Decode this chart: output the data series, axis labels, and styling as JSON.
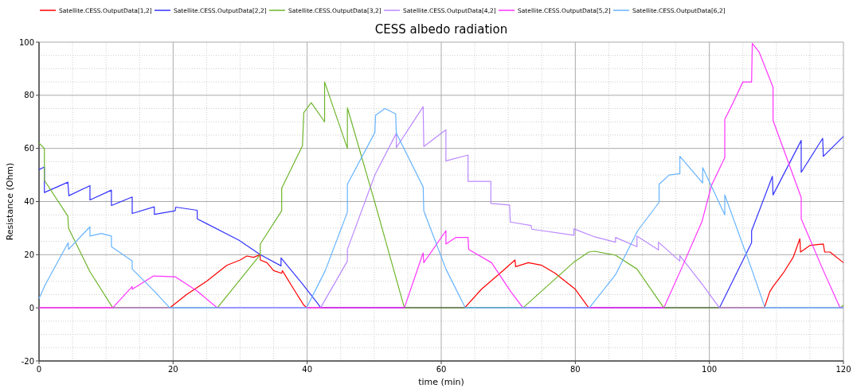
{
  "chart_data": {
    "type": "line",
    "title": "CESS albedo radiation",
    "xlabel": "time (min)",
    "ylabel": "Resistance (Ohm)",
    "xlim": [
      0,
      120
    ],
    "xticks": [
      0,
      20,
      40,
      60,
      80,
      100,
      120
    ],
    "ylim": [
      -20,
      100
    ],
    "yticks": [
      -20,
      0,
      20,
      40,
      60,
      80,
      100
    ],
    "grid": true,
    "legend": "top",
    "line_style": "solid",
    "series": [
      {
        "name": "Satellite.CESS.OutputData[1,2]",
        "color": "#ff0000",
        "x": [
          0,
          19.5,
          22,
          25,
          28,
          30,
          31,
          32,
          33,
          33,
          34,
          35,
          36.2,
          36.3,
          38,
          39.5,
          40,
          63.5,
          66,
          69,
          71,
          71.1,
          73,
          75,
          77,
          80,
          82,
          108.2,
          109,
          109.5,
          111,
          112.5,
          113.5,
          113.6,
          115,
          117,
          117.2,
          118,
          120
        ],
        "values": [
          0,
          0,
          5,
          10,
          16,
          18,
          19.5,
          19,
          20,
          18,
          17,
          14,
          13,
          14,
          7,
          1,
          0,
          0,
          7,
          13.5,
          18,
          15.5,
          17,
          16,
          13,
          7,
          0,
          0,
          6,
          8,
          13,
          19,
          26,
          21,
          23.5,
          24,
          21,
          21,
          17
        ]
      },
      {
        "name": "Satellite.CESS.OutputData[2,2]",
        "color": "#3333ff",
        "x": [
          0,
          0.8,
          0.8,
          4.3,
          4.45,
          7.6,
          7.6,
          10.8,
          10.8,
          13.9,
          13.9,
          17.2,
          17.2,
          20.3,
          20.4,
          23.6,
          23.6,
          29.8,
          33,
          36.1,
          36.1,
          39.3,
          41.7,
          42,
          101.5,
          106.3,
          106.3,
          109.4,
          109.5,
          113.7,
          113.7,
          116.9,
          117,
          120
        ],
        "values": [
          52,
          53,
          43.4,
          47.3,
          42.2,
          46,
          40.6,
          44.3,
          38.5,
          41.7,
          35.5,
          38,
          35.2,
          36.5,
          37.9,
          36.7,
          33.5,
          25.5,
          20,
          15.8,
          18.8,
          9,
          1.2,
          0,
          0,
          24.5,
          29,
          49.5,
          42.5,
          63,
          51,
          63.8,
          57,
          64.5
        ]
      },
      {
        "name": "Satellite.CESS.OutputData[3,2]",
        "color": "#6fb52c",
        "x": [
          0,
          0.8,
          0.8,
          4.3,
          4.4,
          7.6,
          11,
          26.6,
          33,
          33,
          36.2,
          36.2,
          39.3,
          39.5,
          40.6,
          42.6,
          42.6,
          46,
          46,
          50,
          54.5,
          72.2,
          79.7,
          82,
          82.9,
          86,
          89.2,
          93.2,
          119.5,
          120
        ],
        "values": [
          62,
          60,
          48,
          34.5,
          30,
          13.6,
          0,
          0,
          20,
          24,
          36.5,
          45,
          61,
          73.5,
          77.2,
          70,
          85,
          60,
          75.3,
          40.5,
          0,
          0,
          17,
          21,
          21.3,
          19.8,
          14.6,
          0,
          0,
          1
        ]
      },
      {
        "name": "Satellite.CESS.OutputData[4,2]",
        "color": "#bb88ff",
        "x": [
          0,
          42,
          46,
          46,
          50.1,
          53.3,
          53.3,
          57.3,
          57.4,
          60.7,
          60.7,
          64,
          64,
          67.4,
          67.4,
          70.2,
          70.3,
          73.4,
          73.5,
          79.8,
          79.8,
          82.9,
          86,
          86,
          89.2,
          89.2,
          92.4,
          92.4,
          95.6,
          95.6,
          98.9,
          101.5,
          120
        ],
        "values": [
          0,
          0,
          17.6,
          22,
          50,
          65.7,
          60.3,
          75.7,
          60.7,
          67,
          55.3,
          57.5,
          47.6,
          47.6,
          39.3,
          38.7,
          32.3,
          31,
          29.6,
          27.3,
          29.7,
          26.7,
          24.7,
          26.5,
          23,
          27,
          21.8,
          24.7,
          17.6,
          19.6,
          9,
          0,
          0
        ]
      },
      {
        "name": "Satellite.CESS.OutputData[5,2]",
        "color": "#ff33ff",
        "x": [
          0,
          11,
          13.9,
          13.9,
          17.1,
          20.3,
          23.5,
          26.6,
          54.5,
          57.3,
          57.4,
          60.7,
          60.7,
          62.2,
          64,
          64.1,
          67.5,
          70.4,
          72.2,
          93.2,
          95.8,
          98.9,
          100.3,
          102.3,
          102.3,
          103.5,
          105,
          106.3,
          106.4,
          107.4,
          109.5,
          109.5,
          113.7,
          113.7,
          116.9,
          119.5,
          120
        ],
        "values": [
          0,
          0,
          8,
          7,
          12,
          11.7,
          6.5,
          0,
          0,
          20.7,
          17,
          29,
          24,
          26.5,
          26.5,
          22,
          17,
          6,
          0,
          0,
          14.6,
          32.5,
          46,
          56.5,
          71,
          77,
          85,
          85,
          99.5,
          96.4,
          83,
          70.5,
          41.5,
          33.5,
          14.6,
          0,
          0
        ]
      },
      {
        "name": "Satellite.CESS.OutputData[6,2]",
        "color": "#66b3ff",
        "x": [
          0,
          0.9,
          4.35,
          4.4,
          7.6,
          7.6,
          9.3,
          10.8,
          10.8,
          13.9,
          13.9,
          17.1,
          19.5,
          39.9,
          42.7,
          46,
          46,
          50.1,
          50.2,
          51.6,
          53.2,
          53.3,
          57.3,
          57.4,
          60.7,
          63.6,
          82.1,
          86,
          89.3,
          92.5,
          92.5,
          94,
          95.6,
          95.6,
          99,
          99,
          102.3,
          102.3,
          106.3,
          108.3,
          120
        ],
        "values": [
          3.5,
          8.6,
          24.5,
          22,
          30.5,
          27,
          28,
          27,
          23,
          17.6,
          14.6,
          6.5,
          0,
          0,
          14,
          36,
          46.5,
          66,
          72.5,
          75,
          73,
          65.7,
          45.5,
          36.5,
          14.6,
          0,
          0,
          12.5,
          29,
          39.7,
          46.5,
          50,
          50.5,
          57,
          47,
          52.8,
          35,
          42.5,
          14.6,
          0,
          0
        ]
      }
    ]
  }
}
